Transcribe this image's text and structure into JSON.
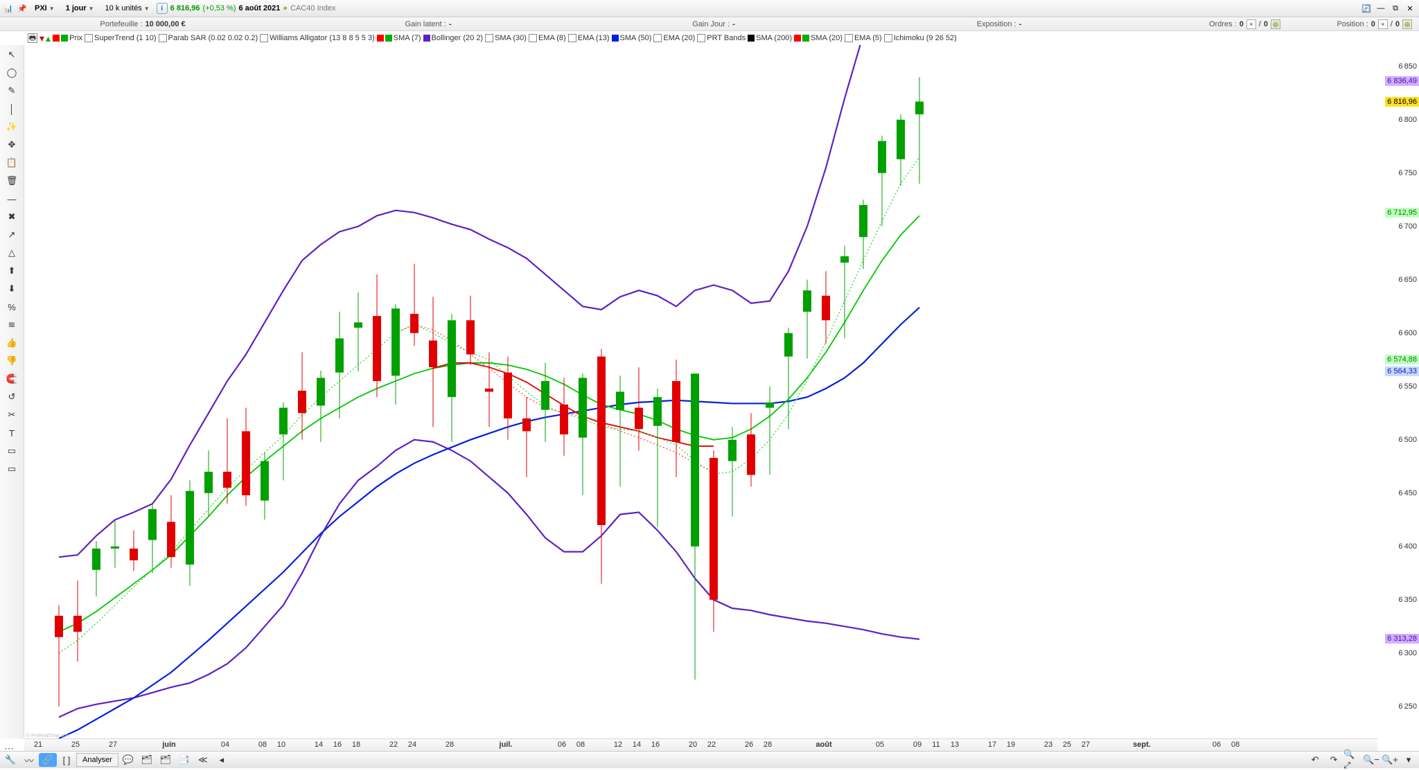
{
  "title": {
    "sym": "PXI",
    "tf": "1 jour",
    "units": "10 k unités",
    "price": "6 816,96",
    "chg": "(+0,53 %)",
    "date": "6 août 2021",
    "idx": "CAC40 Index"
  },
  "info": {
    "pf_l": "Portefeuille :",
    "pf_v": "10 000,00 €",
    "gl_l": "Gain latent :",
    "gl_v": "-",
    "gj_l": "Gain Jour :",
    "gj_v": "-",
    "ex_l": "Exposition :",
    "ex_v": "-",
    "ord_l": "Ordres :",
    "ord_v1": "0",
    "ord_v2": "0",
    "pos_l": "Position :",
    "pos_v1": "0",
    "pos_v2": "0"
  },
  "ind": [
    {
      "sw": [
        "#ff0000",
        "#00b000"
      ],
      "txt": "Prix"
    },
    {
      "cb": 1,
      "txt": "SuperTrend (1 10)"
    },
    {
      "cb": 1,
      "txt": "Parab SAR (0.02 0.02 0.2)"
    },
    {
      "cb": 1,
      "txt": "Williams Alligator (13 8 8 5 5 3)"
    },
    {
      "sw": [
        "#ff0000",
        "#00b000"
      ],
      "txt": "SMA (7)"
    },
    {
      "sw": [
        "#6020c0"
      ],
      "txt": "Bollinger (20 2)"
    },
    {
      "cb": 1,
      "txt": "SMA (30)"
    },
    {
      "cb": 1,
      "txt": "EMA (8)"
    },
    {
      "cb": 1,
      "txt": "EMA (13)"
    },
    {
      "sw": [
        "#0020e0"
      ],
      "txt": "SMA (50)"
    },
    {
      "cb": 1,
      "txt": "EMA (20)"
    },
    {
      "cb": 1,
      "txt": "PRT Bands"
    },
    {
      "sw": [
        "#000"
      ],
      "txt": "SMA (200)"
    },
    {
      "sw": [
        "#ff0000",
        "#00b000"
      ],
      "txt": "SMA (20)"
    },
    {
      "cb": 1,
      "txt": "EMA (5)"
    },
    {
      "cb": 1,
      "txt": "Ichimoku (9 26 52)"
    }
  ],
  "yaxis": {
    "min": 6220,
    "max": 6870,
    "ticks": [
      6250,
      6300,
      6350,
      6400,
      6450,
      6500,
      6550,
      6600,
      6650,
      6700,
      6750,
      6800,
      6850
    ],
    "tags": [
      {
        "v": 6836.49,
        "t": "6 836,49",
        "bg": "#d0b0ff",
        "fg": "#5a00b0"
      },
      {
        "v": 6816.96,
        "t": "6 816,96",
        "bg": "#ffe020",
        "fg": "#000"
      },
      {
        "v": 6712.95,
        "t": "6 712,95",
        "bg": "#c0ffc0",
        "fg": "#008000"
      },
      {
        "v": 6574.88,
        "t": "6 574,88",
        "bg": "#c0ffc0",
        "fg": "#008000"
      },
      {
        "v": 6564.33,
        "t": "6 564,33",
        "bg": "#c8d8ff",
        "fg": "#0020c0"
      },
      {
        "v": 6313.28,
        "t": "6 313,28",
        "bg": "#d0b0ff",
        "fg": "#5a00b0"
      }
    ]
  },
  "xaxis": {
    "start": 0,
    "step": 27,
    "labels": [
      {
        "i": 0,
        "t": "21"
      },
      {
        "i": 2,
        "t": "25"
      },
      {
        "i": 4,
        "t": "27"
      },
      {
        "i": 7,
        "t": "juin",
        "b": 1
      },
      {
        "i": 10,
        "t": "04"
      },
      {
        "i": 12,
        "t": "08"
      },
      {
        "i": 13,
        "t": "10"
      },
      {
        "i": 15,
        "t": "14"
      },
      {
        "i": 16,
        "t": "16"
      },
      {
        "i": 17,
        "t": "18"
      },
      {
        "i": 19,
        "t": "22"
      },
      {
        "i": 20,
        "t": "24"
      },
      {
        "i": 22,
        "t": "28"
      },
      {
        "i": 25,
        "t": "juil.",
        "b": 1
      },
      {
        "i": 28,
        "t": "06"
      },
      {
        "i": 29,
        "t": "08"
      },
      {
        "i": 31,
        "t": "12"
      },
      {
        "i": 32,
        "t": "14"
      },
      {
        "i": 33,
        "t": "16"
      },
      {
        "i": 35,
        "t": "20"
      },
      {
        "i": 36,
        "t": "22"
      },
      {
        "i": 38,
        "t": "26"
      },
      {
        "i": 39,
        "t": "28"
      },
      {
        "i": 42,
        "t": "août",
        "b": 1
      },
      {
        "i": 45,
        "t": "05"
      },
      {
        "i": 47,
        "t": "09"
      },
      {
        "i": 48,
        "t": "11"
      },
      {
        "i": 49,
        "t": "13"
      },
      {
        "i": 51,
        "t": "17"
      },
      {
        "i": 52,
        "t": "19"
      },
      {
        "i": 54,
        "t": "23"
      },
      {
        "i": 55,
        "t": "25"
      },
      {
        "i": 56,
        "t": "27"
      },
      {
        "i": 59,
        "t": "sept.",
        "b": 1
      },
      {
        "i": 63,
        "t": "06"
      },
      {
        "i": 64,
        "t": "08"
      }
    ]
  },
  "colors": {
    "bull": "#00a000",
    "bear": "#e00000",
    "wick": "#555",
    "sma50": "#0020e0",
    "bol": "#6020c0",
    "sma20g": "#00c800",
    "sma20r": "#e00000",
    "sma7g": "#40e040",
    "sma7r": "#ff6060"
  },
  "candles": [
    [
      6335,
      6250,
      6345,
      6315
    ],
    [
      6335,
      6292,
      6368,
      6320
    ],
    [
      6378,
      6353,
      6405,
      6398
    ],
    [
      6398,
      6380,
      6425,
      6400
    ],
    [
      6398,
      6377,
      6415,
      6387
    ],
    [
      6406,
      6375,
      6440,
      6435
    ],
    [
      6423,
      6380,
      6448,
      6390
    ],
    [
      6383,
      6363,
      6462,
      6452
    ],
    [
      6450,
      6428,
      6490,
      6470
    ],
    [
      6470,
      6440,
      6520,
      6455
    ],
    [
      6508,
      6438,
      6530,
      6448
    ],
    [
      6443,
      6425,
      6488,
      6480
    ],
    [
      6505,
      6462,
      6535,
      6530
    ],
    [
      6546,
      6500,
      6582,
      6525
    ],
    [
      6532,
      6498,
      6565,
      6558
    ],
    [
      6563,
      6520,
      6620,
      6595
    ],
    [
      6605,
      6564,
      6638,
      6610
    ],
    [
      6616,
      6540,
      6655,
      6555
    ],
    [
      6560,
      6533,
      6627,
      6623
    ],
    [
      6618,
      6588,
      6665,
      6600
    ],
    [
      6593,
      6512,
      6634,
      6568
    ],
    [
      6540,
      6498,
      6618,
      6612
    ],
    [
      6612,
      6570,
      6635,
      6580
    ],
    [
      6548,
      6512,
      6582,
      6545
    ],
    [
      6563,
      6500,
      6578,
      6520
    ],
    [
      6520,
      6465,
      6540,
      6508
    ],
    [
      6528,
      6498,
      6572,
      6555
    ],
    [
      6533,
      6485,
      6558,
      6505
    ],
    [
      6502,
      6448,
      6562,
      6558
    ],
    [
      6578,
      6365,
      6585,
      6420
    ],
    [
      6528,
      6456,
      6560,
      6545
    ],
    [
      6530,
      6490,
      6568,
      6510
    ],
    [
      6513,
      6418,
      6548,
      6540
    ],
    [
      6555,
      6465,
      6575,
      6498
    ],
    [
      6400,
      6275,
      6560,
      6562
    ],
    [
      6483,
      6320,
      6490,
      6350
    ],
    [
      6480,
      6428,
      6512,
      6500
    ],
    [
      6505,
      6456,
      6525,
      6467
    ],
    [
      6530,
      6467,
      6550,
      6535
    ],
    [
      6578,
      6510,
      6605,
      6600
    ],
    [
      6620,
      6576,
      6650,
      6640
    ],
    [
      6635,
      6590,
      6658,
      6612
    ],
    [
      6666,
      6595,
      6682,
      6672
    ],
    [
      6690,
      6660,
      6725,
      6720
    ],
    [
      6750,
      6700,
      6785,
      6780
    ],
    [
      6763,
      6738,
      6805,
      6800
    ],
    [
      6805,
      6740,
      6840,
      6817
    ]
  ],
  "bolU": [
    6390,
    6392,
    6410,
    6425,
    6432,
    6440,
    6463,
    6495,
    6525,
    6555,
    6580,
    6610,
    6640,
    6668,
    6683,
    6695,
    6700,
    6710,
    6715,
    6713,
    6708,
    6702,
    6697,
    6688,
    6680,
    6670,
    6655,
    6640,
    6625,
    6622,
    6634,
    6640,
    6635,
    6625,
    6640,
    6645,
    6640,
    6628,
    6630,
    6658,
    6700,
    6755,
    6820,
    6880,
    6925,
    6955,
    6965
  ],
  "bolL": [
    6240,
    6248,
    6252,
    6255,
    6258,
    6263,
    6268,
    6272,
    6280,
    6290,
    6305,
    6325,
    6345,
    6375,
    6410,
    6440,
    6462,
    6475,
    6490,
    6500,
    6498,
    6490,
    6480,
    6465,
    6450,
    6430,
    6408,
    6395,
    6395,
    6410,
    6430,
    6432,
    6415,
    6395,
    6370,
    6350,
    6342,
    6340,
    6336,
    6333,
    6330,
    6328,
    6325,
    6322,
    6318,
    6315,
    6313
  ],
  "sma50": [
    6220,
    6228,
    6238,
    6248,
    6258,
    6270,
    6282,
    6297,
    6312,
    6328,
    6344,
    6360,
    6376,
    6394,
    6412,
    6428,
    6442,
    6456,
    6468,
    6478,
    6486,
    6493,
    6500,
    6506,
    6512,
    6517,
    6521,
    6524,
    6527,
    6530,
    6533,
    6535,
    6536,
    6537,
    6536,
    6535,
    6534,
    6534,
    6534,
    6536,
    6540,
    6548,
    6558,
    6572,
    6590,
    6608,
    6624
  ],
  "sma20g": [
    6320,
    6328,
    6339,
    6352,
    6365,
    6378,
    6392,
    6410,
    6428,
    6448,
    6465,
    6480,
    6494,
    6508,
    6520,
    6530,
    6540,
    6548,
    6555,
    6562,
    6567,
    6570,
    6572,
    6572,
    6570,
    6566,
    6560,
    6552,
    6542,
    6533,
    6528,
    6524,
    6518,
    6510,
    6504,
    6500,
    6502,
    6510,
    6522,
    6538,
    6558,
    6582,
    6610,
    6640,
    6668,
    6692,
    6710
  ],
  "sma20r": [
    null,
    null,
    null,
    null,
    null,
    null,
    null,
    null,
    null,
    null,
    null,
    null,
    null,
    null,
    null,
    null,
    null,
    null,
    null,
    null,
    6567,
    6572,
    6572,
    6568,
    6562,
    6554,
    6543,
    6532,
    6522,
    6516,
    6512,
    6508,
    6502,
    6498,
    6494,
    6494,
    null,
    null,
    null,
    null,
    null,
    null,
    null,
    null,
    null,
    null,
    null
  ],
  "sma7g": [
    6300,
    6312,
    6328,
    6345,
    6362,
    6378,
    6395,
    6415,
    6435,
    6455,
    6472,
    6488,
    6504,
    6523,
    6540,
    6555,
    6570,
    6585,
    6600,
    6608,
    6600,
    6590,
    6582,
    6575,
    6560,
    6545,
    6532,
    6524,
    6520,
    6512,
    6510,
    6508,
    6502,
    6495,
    6480,
    6468,
    6470,
    6482,
    6500,
    6524,
    6556,
    6592,
    6630,
    6668,
    6705,
    6740,
    6765
  ],
  "sma7r": [
    null,
    null,
    null,
    null,
    null,
    null,
    null,
    null,
    null,
    null,
    null,
    null,
    null,
    null,
    null,
    null,
    null,
    null,
    6600,
    6608,
    6603,
    6593,
    6580,
    6567,
    6553,
    6540,
    6530,
    6525,
    6522,
    6515,
    6508,
    6502,
    6495,
    6488,
    6478,
    6470,
    null,
    null,
    null,
    null,
    null,
    null,
    null,
    null,
    null,
    null,
    null
  ],
  "lefttools": [
    "↖",
    "◯",
    "✎",
    "│",
    "✨",
    "✥",
    "📋",
    "🗑",
    "—",
    "✖",
    "↗",
    "△",
    "⬆",
    "⬇",
    "%",
    "≋",
    "👍",
    "👎",
    "🧲",
    "↺",
    "✂",
    "T",
    "▭",
    "▭"
  ],
  "bottom": {
    "analyser": "Analyser"
  },
  "credit": "© ProRealTime.com"
}
